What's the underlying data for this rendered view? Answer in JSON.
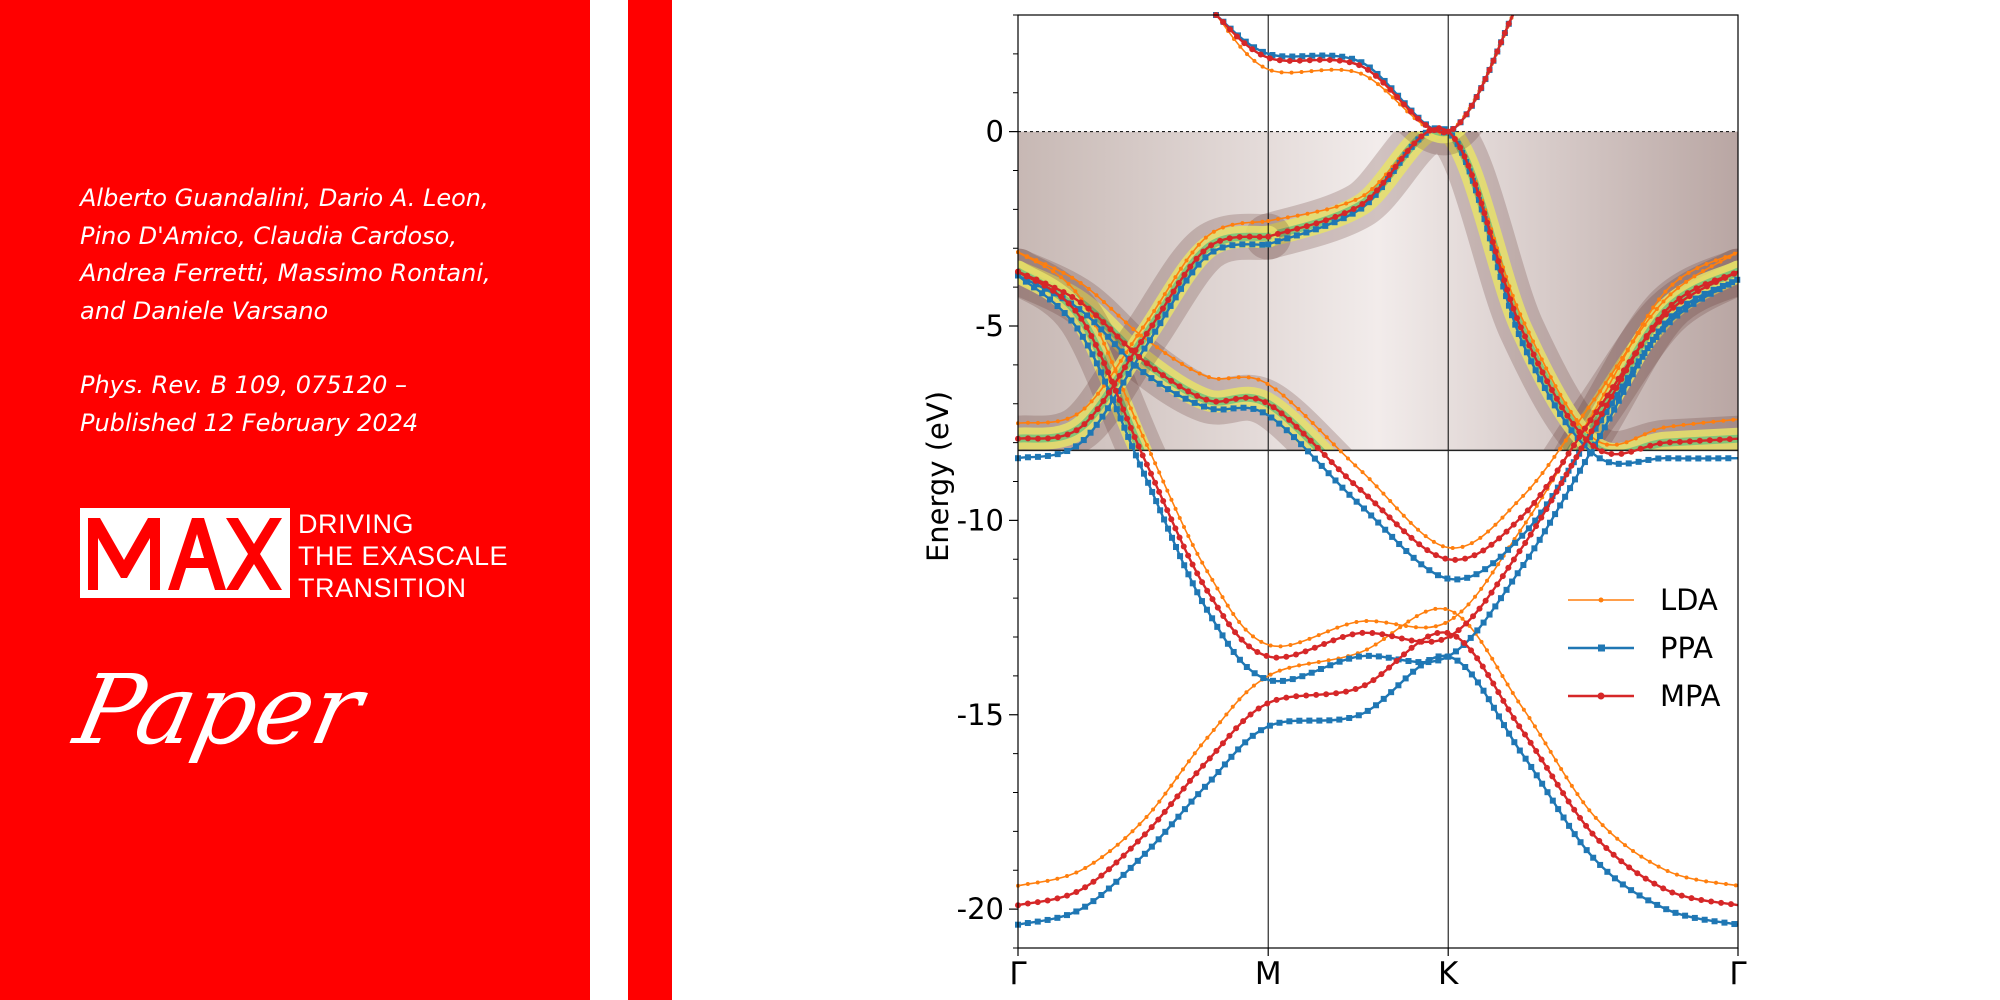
{
  "left_panel": {
    "authors": [
      "Alberto Guandalini, Dario A. Leon,",
      "Pino D'Amico, Claudia Cardoso,",
      "Andrea Ferretti, Massimo Rontani,",
      "and Daniele Varsano"
    ],
    "citation": [
      "Phys. Rev. B 109, 075120 –",
      "Published 12 February 2024"
    ],
    "logo": {
      "mark": "MAX",
      "tagline": [
        "DRIVING",
        "THE EXASCALE",
        "TRANSITION"
      ]
    },
    "label": "Paper",
    "colors": {
      "brand_red": "#ff0000",
      "text": "#ffffff"
    }
  },
  "chart_data": {
    "type": "line",
    "title": "",
    "xlabel": "",
    "ylabel": "Energy (eV)",
    "ylim": [
      -21,
      3
    ],
    "xlim": [
      0,
      4
    ],
    "x_ticks": [
      {
        "label": "Γ",
        "x": 0
      },
      {
        "label": "M",
        "x": 1.39
      },
      {
        "label": "K",
        "x": 2.39
      },
      {
        "label": "Γ",
        "x": 4
      }
    ],
    "y_ticks": [
      0,
      -5,
      -10,
      -15,
      -20
    ],
    "fermi_level": 0,
    "arpes_background": {
      "from_eV": 0,
      "to_eV": -8.2
    },
    "grid": false,
    "legend_position": "right",
    "series": [
      {
        "name": "LDA",
        "color": "#ff7f0e",
        "marker": "dot",
        "bands": [
          [
            [
              0,
              -19.4
            ],
            [
              0.35,
              -19.0
            ],
            [
              0.7,
              -17.7
            ],
            [
              1.05,
              -15.6
            ],
            [
              1.39,
              -14.0
            ],
            [
              1.9,
              -13.4
            ],
            [
              2.39,
              -12.3
            ],
            [
              2.8,
              -14.8
            ],
            [
              3.2,
              -17.6
            ],
            [
              3.6,
              -19.0
            ],
            [
              4,
              -19.4
            ]
          ],
          [
            [
              0,
              -3.1
            ],
            [
              0.35,
              -3.9
            ],
            [
              0.7,
              -5.3
            ],
            [
              1.05,
              -6.3
            ],
            [
              1.39,
              -6.5
            ],
            [
              1.9,
              -8.7
            ],
            [
              2.39,
              -10.7
            ],
            [
              2.8,
              -9.4
            ],
            [
              3.2,
              -6.9
            ],
            [
              3.6,
              -4.3
            ],
            [
              4,
              -3.1
            ]
          ],
          [
            [
              0,
              -3.1
            ],
            [
              0.35,
              -4.3
            ],
            [
              0.7,
              -7.9
            ],
            [
              1.05,
              -11.3
            ],
            [
              1.39,
              -13.2
            ],
            [
              1.9,
              -12.6
            ],
            [
              2.39,
              -12.6
            ],
            [
              2.8,
              -10.2
            ],
            [
              3.2,
              -7.2
            ],
            [
              3.6,
              -4.1
            ],
            [
              4,
              -3.1
            ]
          ],
          [
            [
              1.39,
              -2.3
            ],
            [
              1.9,
              -1.7
            ],
            [
              2.39,
              0.0
            ],
            [
              2.8,
              -4.8
            ],
            [
              3.2,
              -7.9
            ],
            [
              3.6,
              -7.6
            ],
            [
              4,
              -7.4
            ]
          ],
          [
            [
              0,
              -7.5
            ],
            [
              0.35,
              -7.2
            ],
            [
              0.7,
              -5.0
            ],
            [
              1.05,
              -2.7
            ],
            [
              1.39,
              -2.3
            ]
          ],
          [
            [
              1.1,
              3.0
            ],
            [
              1.39,
              1.6
            ],
            [
              1.9,
              1.5
            ],
            [
              2.39,
              0.0
            ],
            [
              2.75,
              3.0
            ]
          ]
        ]
      },
      {
        "name": "PPA",
        "color": "#1f77b4",
        "marker": "square",
        "bands": [
          [
            [
              0,
              -20.4
            ],
            [
              0.35,
              -20.0
            ],
            [
              0.7,
              -18.6
            ],
            [
              1.05,
              -16.8
            ],
            [
              1.39,
              -15.3
            ],
            [
              1.9,
              -15.0
            ],
            [
              2.39,
              -13.5
            ],
            [
              2.8,
              -16.0
            ],
            [
              3.2,
              -18.7
            ],
            [
              3.6,
              -20.0
            ],
            [
              4,
              -20.4
            ]
          ],
          [
            [
              0,
              -3.7
            ],
            [
              0.35,
              -4.6
            ],
            [
              0.7,
              -6.2
            ],
            [
              1.05,
              -7.1
            ],
            [
              1.39,
              -7.3
            ],
            [
              1.9,
              -9.6
            ],
            [
              2.39,
              -11.5
            ],
            [
              2.8,
              -10.4
            ],
            [
              3.2,
              -7.7
            ],
            [
              3.6,
              -5.0
            ],
            [
              4,
              -3.8
            ]
          ],
          [
            [
              0,
              -3.7
            ],
            [
              0.35,
              -5.2
            ],
            [
              0.7,
              -8.8
            ],
            [
              1.05,
              -12.3
            ],
            [
              1.39,
              -14.1
            ],
            [
              1.9,
              -13.5
            ],
            [
              2.39,
              -13.5
            ],
            [
              2.8,
              -11.2
            ],
            [
              3.2,
              -8.1
            ],
            [
              3.6,
              -4.9
            ],
            [
              4,
              -3.8
            ]
          ],
          [
            [
              1.39,
              -2.9
            ],
            [
              1.9,
              -2.0
            ],
            [
              2.39,
              0.0
            ],
            [
              2.8,
              -5.4
            ],
            [
              3.2,
              -8.3
            ],
            [
              3.6,
              -8.4
            ],
            [
              4,
              -8.4
            ]
          ],
          [
            [
              0,
              -8.4
            ],
            [
              0.35,
              -8.0
            ],
            [
              0.7,
              -5.6
            ],
            [
              1.05,
              -3.2
            ],
            [
              1.39,
              -2.9
            ]
          ],
          [
            [
              1.1,
              3.0
            ],
            [
              1.39,
              2.0
            ],
            [
              1.9,
              1.8
            ],
            [
              2.39,
              0.0
            ],
            [
              2.75,
              3.0
            ]
          ]
        ]
      },
      {
        "name": "MPA",
        "color": "#d62728",
        "marker": "circle",
        "bands": [
          [
            [
              0,
              -19.9
            ],
            [
              0.35,
              -19.5
            ],
            [
              0.7,
              -18.1
            ],
            [
              1.05,
              -16.2
            ],
            [
              1.39,
              -14.7
            ],
            [
              1.9,
              -14.3
            ],
            [
              2.39,
              -12.9
            ],
            [
              2.8,
              -15.4
            ],
            [
              3.2,
              -18.1
            ],
            [
              3.6,
              -19.5
            ],
            [
              4,
              -19.9
            ]
          ],
          [
            [
              0,
              -3.6
            ],
            [
              0.35,
              -4.4
            ],
            [
              0.7,
              -5.9
            ],
            [
              1.05,
              -6.9
            ],
            [
              1.39,
              -7.0
            ],
            [
              1.9,
              -9.2
            ],
            [
              2.39,
              -11.0
            ],
            [
              2.8,
              -9.9
            ],
            [
              3.2,
              -7.3
            ],
            [
              3.6,
              -4.7
            ],
            [
              4,
              -3.6
            ]
          ],
          [
            [
              0,
              -3.6
            ],
            [
              0.35,
              -4.8
            ],
            [
              0.7,
              -8.4
            ],
            [
              1.05,
              -11.8
            ],
            [
              1.39,
              -13.5
            ],
            [
              1.9,
              -12.9
            ],
            [
              2.39,
              -13.0
            ],
            [
              2.8,
              -10.7
            ],
            [
              3.2,
              -7.6
            ],
            [
              3.6,
              -4.6
            ],
            [
              4,
              -3.6
            ]
          ],
          [
            [
              1.39,
              -2.7
            ],
            [
              1.9,
              -1.9
            ],
            [
              2.39,
              0.0
            ],
            [
              2.8,
              -5.1
            ],
            [
              3.2,
              -8.1
            ],
            [
              3.6,
              -8.0
            ],
            [
              4,
              -7.9
            ]
          ],
          [
            [
              0,
              -7.9
            ],
            [
              0.35,
              -7.6
            ],
            [
              0.7,
              -5.3
            ],
            [
              1.05,
              -3.0
            ],
            [
              1.39,
              -2.7
            ]
          ],
          [
            [
              1.1,
              3.0
            ],
            [
              1.39,
              1.9
            ],
            [
              1.9,
              1.7
            ],
            [
              2.39,
              0.0
            ],
            [
              2.75,
              3.0
            ]
          ]
        ]
      }
    ]
  }
}
